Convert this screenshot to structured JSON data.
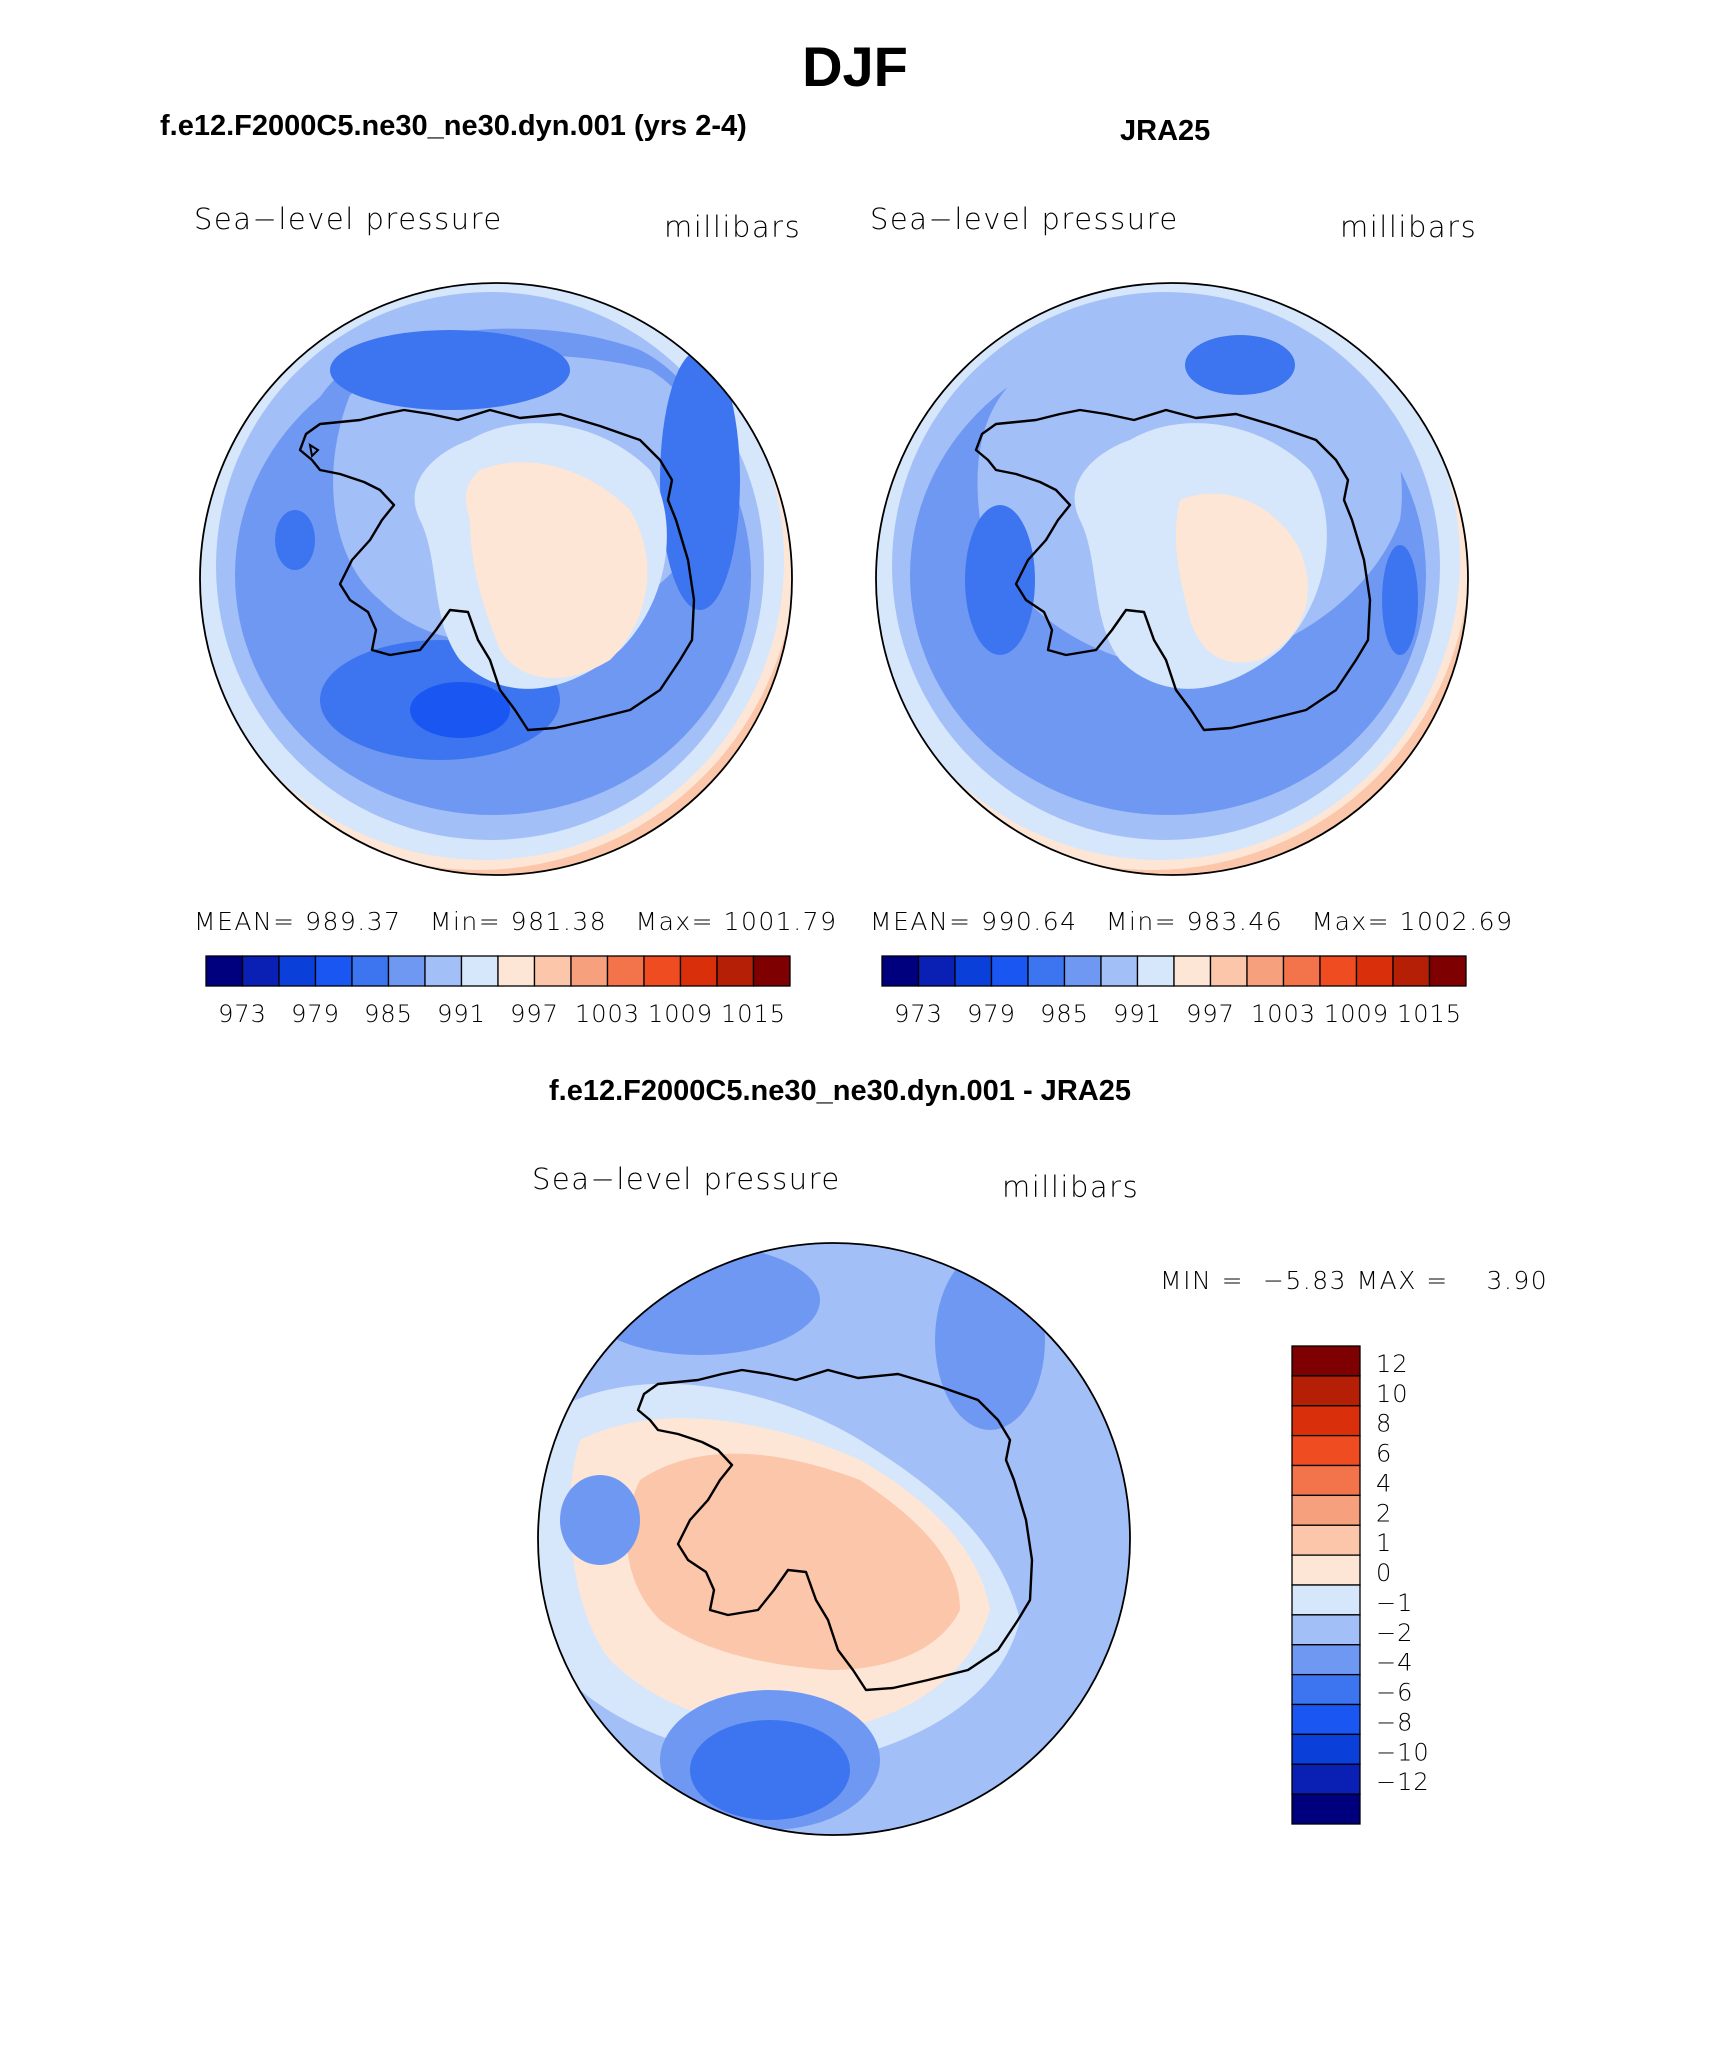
{
  "title": "DJF",
  "panels": {
    "model": {
      "heading": "f.e12.F2000C5.ne30_ne30.dyn.001 (yrs 2-4)",
      "variable": "Sea−level pressure",
      "units": "millibars",
      "stats": {
        "mean_label": "MEAN=",
        "mean": "989.37",
        "min_label": "Min=",
        "min": "981.38",
        "max_label": "Max=",
        "max": "1001.79"
      }
    },
    "obs": {
      "heading": "JRA25",
      "variable": "Sea−level pressure",
      "units": "millibars",
      "stats": {
        "mean_label": "MEAN=",
        "mean": "990.64",
        "min_label": "Min=",
        "min": "983.46",
        "max_label": "Max=",
        "max": "1002.69"
      }
    },
    "diff": {
      "heading": "f.e12.F2000C5.ne30_ne30.dyn.001 - JRA25",
      "variable": "Sea−level pressure",
      "units": "millibars",
      "stats": {
        "min_label": "MIN =",
        "min": "−5.83",
        "max_label": "MAX =",
        "max": "3.90"
      }
    }
  },
  "colors": {
    "abs_bar": [
      "#00007f",
      "#0a1fb4",
      "#0a3fd9",
      "#1a56f2",
      "#3d74ef",
      "#6f98f2",
      "#a3bff7",
      "#d6e6fb",
      "#fde6d6",
      "#fbc6a9",
      "#f7a07d",
      "#f3744a",
      "#f04c22",
      "#d92f0a",
      "#b41f06",
      "#7f0000"
    ],
    "diff_bar": [
      "#00007f",
      "#0a1fb4",
      "#0a3fd9",
      "#1a56f2",
      "#3d74ef",
      "#6f98f2",
      "#a3bff7",
      "#d6e6fb",
      "#fde6d6",
      "#fbc6a9",
      "#f7a07d",
      "#f3744a",
      "#f04c22",
      "#d92f0a",
      "#b41f06",
      "#7f0000"
    ]
  },
  "chart_data": [
    {
      "type": "heatmap",
      "projection": "south polar stereographic",
      "title": "f.e12.F2000C5.ne30_ne30.dyn.001 (yrs 2-4)",
      "variable": "Sea-level pressure",
      "units": "millibars",
      "season": "DJF",
      "mean": 989.37,
      "min": 981.38,
      "max": 1001.79,
      "colorbar_levels": [
        973,
        976,
        979,
        982,
        985,
        988,
        991,
        994,
        997,
        1000,
        1003,
        1006,
        1009,
        1012,
        1015
      ],
      "colorbar_tick_labels": [
        "973",
        "979",
        "985",
        "991",
        "997",
        "1003",
        "1009",
        "1015"
      ]
    },
    {
      "type": "heatmap",
      "projection": "south polar stereographic",
      "title": "JRA25",
      "variable": "Sea-level pressure",
      "units": "millibars",
      "season": "DJF",
      "mean": 990.64,
      "min": 983.46,
      "max": 1002.69,
      "colorbar_levels": [
        973,
        976,
        979,
        982,
        985,
        988,
        991,
        994,
        997,
        1000,
        1003,
        1006,
        1009,
        1012,
        1015
      ],
      "colorbar_tick_labels": [
        "973",
        "979",
        "985",
        "991",
        "997",
        "1003",
        "1009",
        "1015"
      ]
    },
    {
      "type": "heatmap",
      "projection": "south polar stereographic",
      "title": "f.e12.F2000C5.ne30_ne30.dyn.001 - JRA25",
      "variable": "Sea-level pressure",
      "units": "millibars",
      "season": "DJF",
      "min": -5.83,
      "max": 3.9,
      "colorbar_levels": [
        12,
        10,
        8,
        6,
        4,
        2,
        1,
        0,
        -1,
        -2,
        -4,
        -6,
        -8,
        -10,
        -12
      ],
      "colorbar_tick_labels": [
        "12",
        "10",
        "8",
        "6",
        "4",
        "2",
        "1",
        "0",
        "−1",
        "−2",
        "−4",
        "−6",
        "−8",
        "−10",
        "−12"
      ]
    }
  ]
}
